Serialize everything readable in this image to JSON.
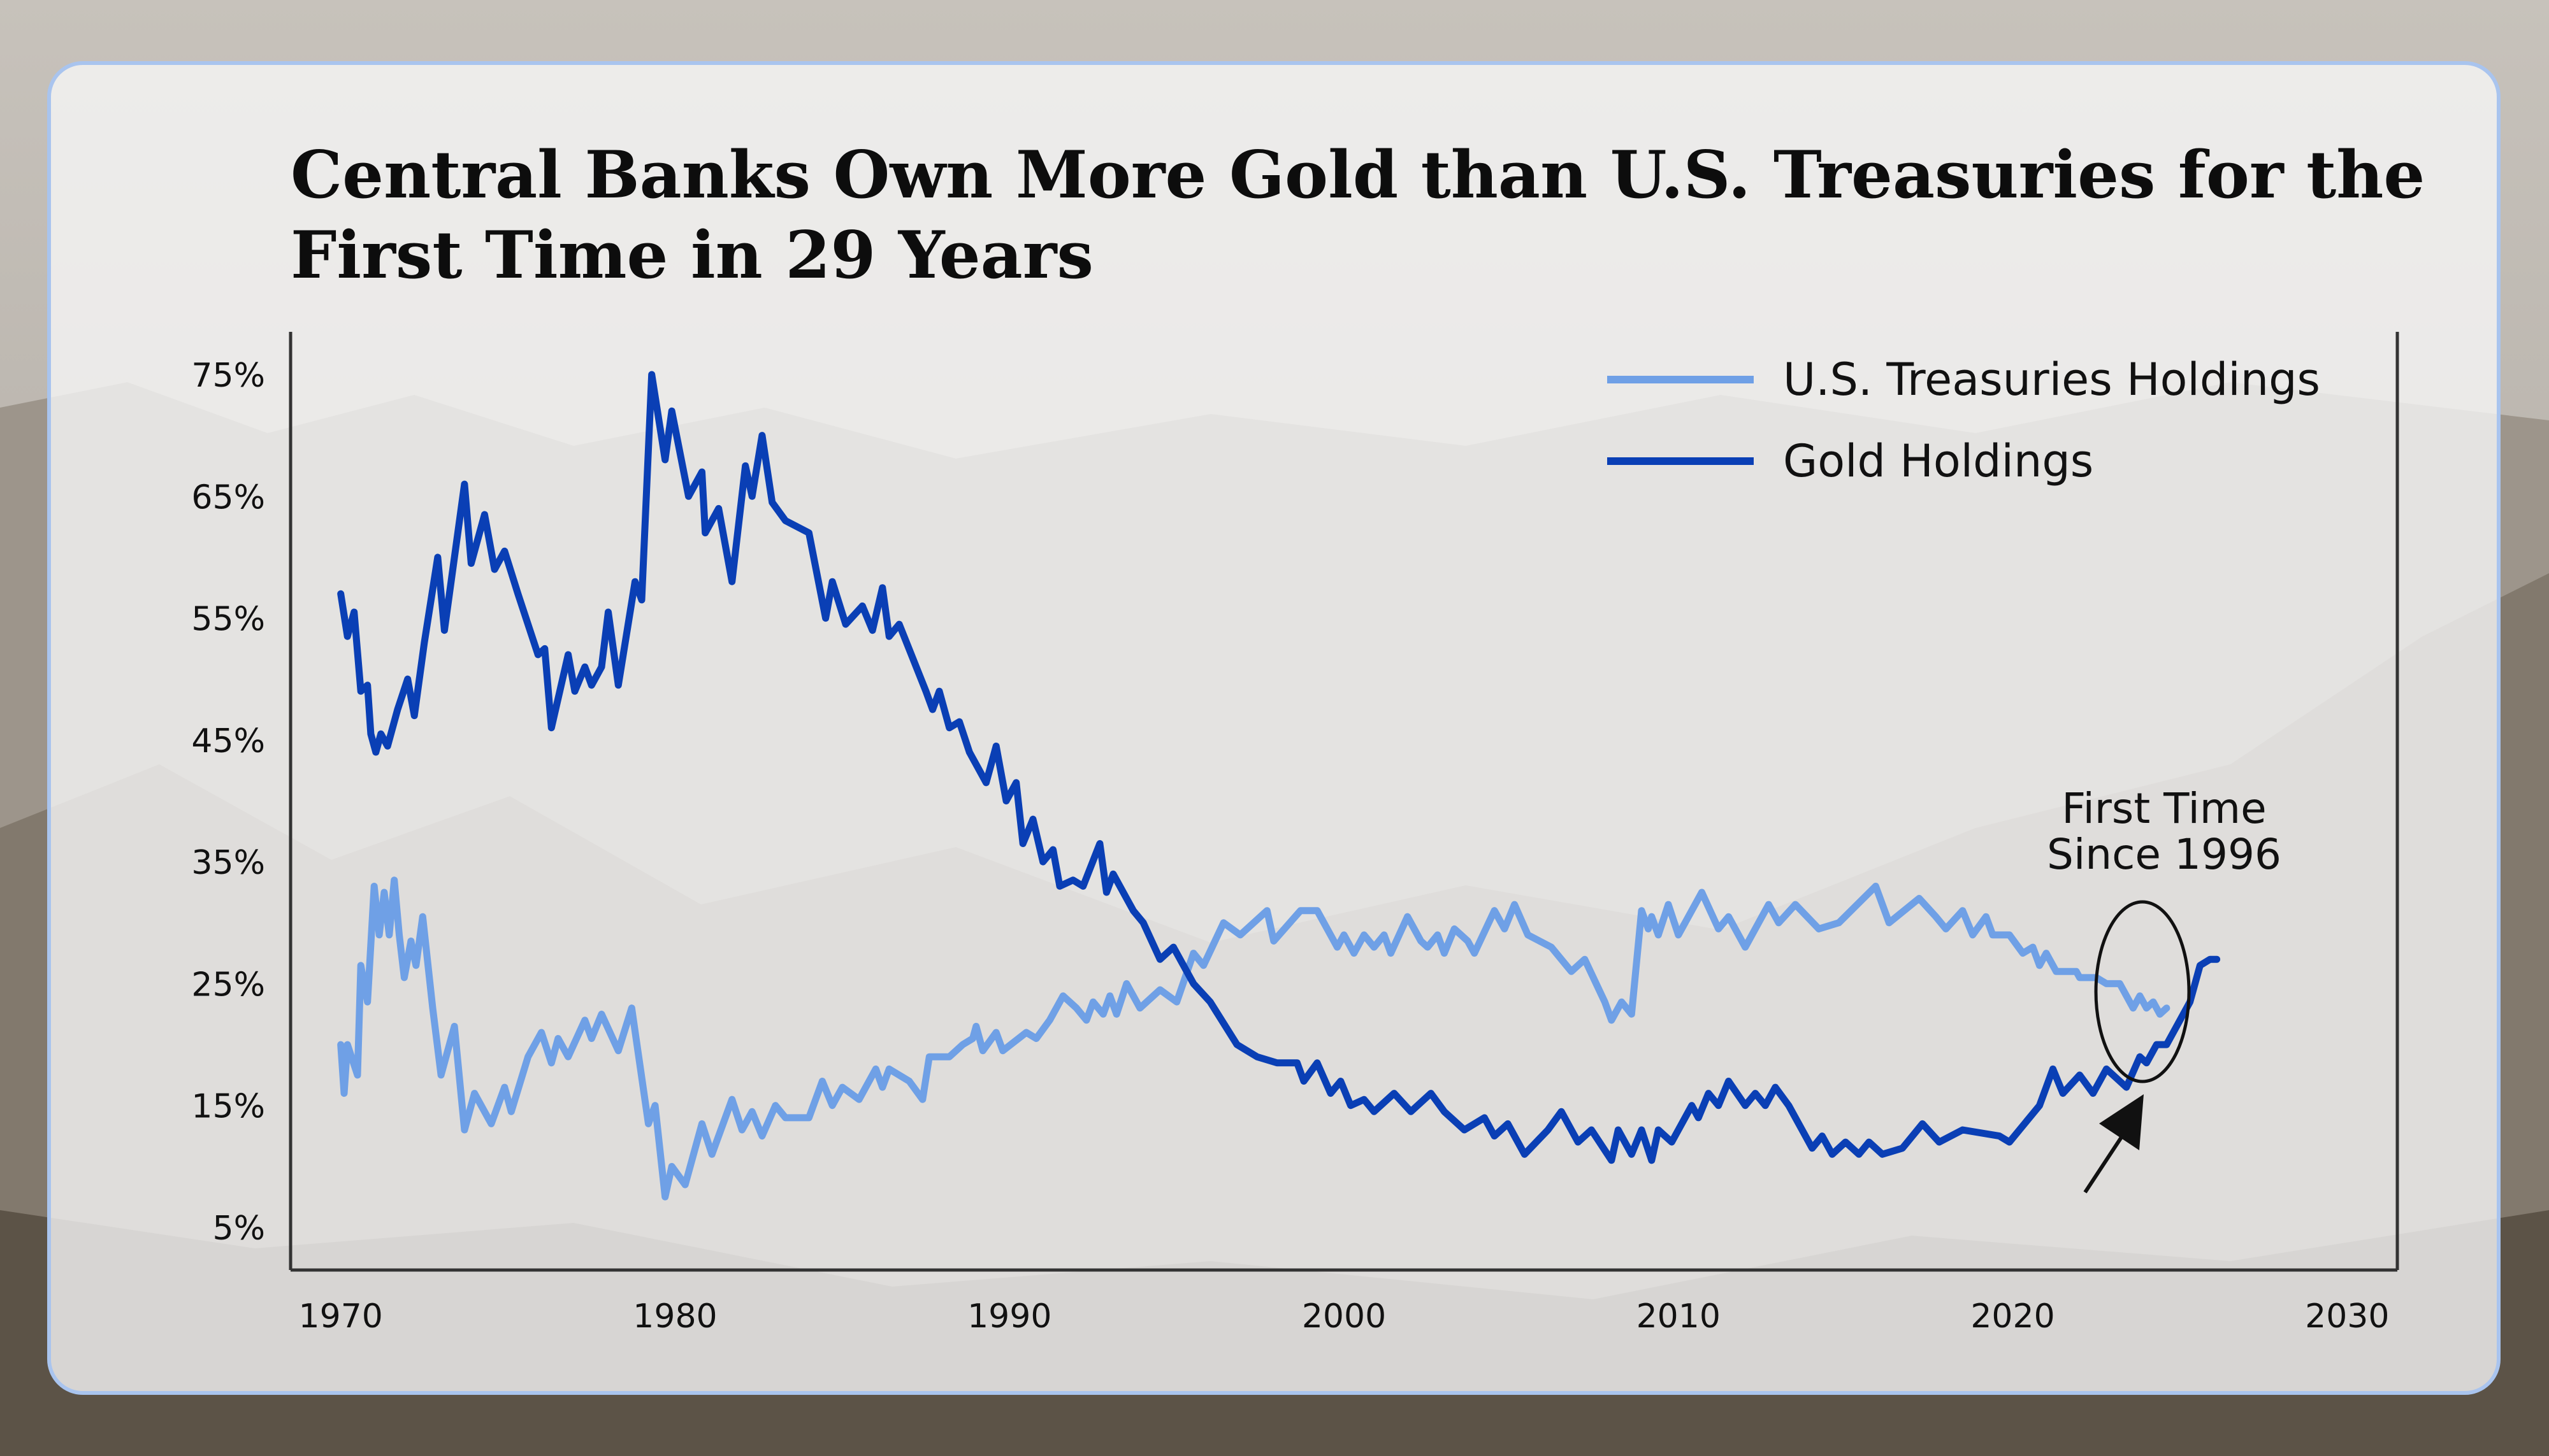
{
  "chart_data": {
    "type": "line",
    "title_lines": [
      "Central Banks Own More Gold than U.S. Treasuries for the",
      "First Time in 29 Years"
    ],
    "xlabel": "",
    "ylabel": "",
    "xlim": [
      1968.5,
      2031.5
    ],
    "ylim": [
      1.5,
      78.5
    ],
    "x_ticks": [
      "1970",
      "1980",
      "1990",
      "2000",
      "2010",
      "2020",
      "2030"
    ],
    "y_ticks": [
      "5%",
      "15%",
      "25%",
      "35%",
      "45%",
      "55%",
      "65%",
      "75%"
    ],
    "grid": false,
    "legend_position": "top-right",
    "annotation": "First Time Since 1996",
    "annotation_lines": [
      "First Time",
      "Since 1996"
    ],
    "series": [
      {
        "name": "U.S. Treasuries Holdings",
        "color": "#6fa0e6",
        "points": [
          [
            1970.0,
            20
          ],
          [
            1970.1,
            16
          ],
          [
            1970.2,
            20
          ],
          [
            1970.5,
            17.5
          ],
          [
            1970.6,
            26.5
          ],
          [
            1970.8,
            23.5
          ],
          [
            1971.0,
            33
          ],
          [
            1971.15,
            29
          ],
          [
            1971.3,
            32.5
          ],
          [
            1971.45,
            29
          ],
          [
            1971.6,
            33.5
          ],
          [
            1971.75,
            29
          ],
          [
            1971.9,
            25.5
          ],
          [
            1972.1,
            28.5
          ],
          [
            1972.25,
            26.5
          ],
          [
            1972.45,
            30.5
          ],
          [
            1972.75,
            23
          ],
          [
            1973.0,
            17.5
          ],
          [
            1973.4,
            21.5
          ],
          [
            1973.7,
            13
          ],
          [
            1974.0,
            16
          ],
          [
            1974.5,
            13.5
          ],
          [
            1974.9,
            16.5
          ],
          [
            1975.1,
            14.5
          ],
          [
            1975.6,
            19
          ],
          [
            1976.0,
            21
          ],
          [
            1976.3,
            18.5
          ],
          [
            1976.5,
            20.5
          ],
          [
            1976.8,
            19
          ],
          [
            1977.3,
            22
          ],
          [
            1977.5,
            20.5
          ],
          [
            1977.8,
            22.5
          ],
          [
            1978.3,
            19.5
          ],
          [
            1978.7,
            23
          ],
          [
            1979.2,
            13.5
          ],
          [
            1979.4,
            15
          ],
          [
            1979.7,
            7.5
          ],
          [
            1979.9,
            10
          ],
          [
            1980.3,
            8.5
          ],
          [
            1980.8,
            13.5
          ],
          [
            1981.1,
            11
          ],
          [
            1981.7,
            15.5
          ],
          [
            1982.0,
            13
          ],
          [
            1982.3,
            14.5
          ],
          [
            1982.6,
            12.5
          ],
          [
            1983.0,
            15
          ],
          [
            1983.3,
            14
          ],
          [
            1984.0,
            14
          ],
          [
            1984.4,
            17
          ],
          [
            1984.7,
            15
          ],
          [
            1985.0,
            16.5
          ],
          [
            1985.5,
            15.5
          ],
          [
            1986.0,
            18
          ],
          [
            1986.2,
            16.5
          ],
          [
            1986.4,
            18
          ],
          [
            1987.0,
            17
          ],
          [
            1987.4,
            15.5
          ],
          [
            1987.6,
            19
          ],
          [
            1988.2,
            19
          ],
          [
            1988.6,
            20
          ],
          [
            1988.9,
            20.5
          ],
          [
            1989.0,
            21.5
          ],
          [
            1989.2,
            19.5
          ],
          [
            1989.6,
            21
          ],
          [
            1989.8,
            19.5
          ],
          [
            1990.5,
            21
          ],
          [
            1990.8,
            20.5
          ],
          [
            1991.2,
            22
          ],
          [
            1991.6,
            24
          ],
          [
            1992.0,
            23
          ],
          [
            1992.3,
            22
          ],
          [
            1992.5,
            23.5
          ],
          [
            1992.8,
            22.5
          ],
          [
            1993.0,
            24
          ],
          [
            1993.2,
            22.5
          ],
          [
            1993.5,
            25
          ],
          [
            1993.9,
            23
          ],
          [
            1994.5,
            24.5
          ],
          [
            1995.0,
            23.5
          ],
          [
            1995.5,
            27.5
          ],
          [
            1995.8,
            26.5
          ],
          [
            1996.4,
            30
          ],
          [
            1996.9,
            29
          ],
          [
            1997.7,
            31
          ],
          [
            1997.9,
            28.5
          ],
          [
            1998.7,
            31
          ],
          [
            1999.2,
            31
          ],
          [
            1999.8,
            28
          ],
          [
            2000.0,
            29
          ],
          [
            2000.3,
            27.5
          ],
          [
            2000.6,
            29
          ],
          [
            2000.9,
            28
          ],
          [
            2001.2,
            29
          ],
          [
            2001.4,
            27.5
          ],
          [
            2001.9,
            30.5
          ],
          [
            2002.3,
            28.5
          ],
          [
            2002.5,
            28
          ],
          [
            2002.8,
            29
          ],
          [
            2003.0,
            27.5
          ],
          [
            2003.3,
            29.5
          ],
          [
            2003.7,
            28.5
          ],
          [
            2003.9,
            27.5
          ],
          [
            2004.5,
            31
          ],
          [
            2004.8,
            29.5
          ],
          [
            2005.1,
            31.5
          ],
          [
            2005.5,
            29
          ],
          [
            2006.2,
            28
          ],
          [
            2006.8,
            26
          ],
          [
            2007.2,
            27
          ],
          [
            2007.8,
            23.5
          ],
          [
            2008.0,
            22
          ],
          [
            2008.3,
            23.5
          ],
          [
            2008.6,
            22.5
          ],
          [
            2008.9,
            31
          ],
          [
            2009.1,
            29.5
          ],
          [
            2009.2,
            30.5
          ],
          [
            2009.4,
            29
          ],
          [
            2009.7,
            31.5
          ],
          [
            2010.0,
            29
          ],
          [
            2010.7,
            32.5
          ],
          [
            2011.2,
            29.5
          ],
          [
            2011.5,
            30.5
          ],
          [
            2012.0,
            28
          ],
          [
            2012.7,
            31.5
          ],
          [
            2013.0,
            30
          ],
          [
            2013.5,
            31.5
          ],
          [
            2014.2,
            29.5
          ],
          [
            2014.8,
            30
          ],
          [
            2015.9,
            33
          ],
          [
            2016.3,
            30
          ],
          [
            2017.2,
            32
          ],
          [
            2017.7,
            30.5
          ],
          [
            2018.0,
            29.5
          ],
          [
            2018.5,
            31
          ],
          [
            2018.8,
            29
          ],
          [
            2019.2,
            30.5
          ],
          [
            2019.4,
            29
          ],
          [
            2019.9,
            29
          ],
          [
            2020.3,
            27.5
          ],
          [
            2020.6,
            28
          ],
          [
            2020.8,
            26.5
          ],
          [
            2021.0,
            27.5
          ],
          [
            2021.3,
            26
          ],
          [
            2021.9,
            26
          ],
          [
            2022.0,
            25.5
          ],
          [
            2022.5,
            25.5
          ],
          [
            2022.8,
            25
          ],
          [
            2023.2,
            25
          ],
          [
            2023.6,
            23
          ],
          [
            2023.8,
            24
          ],
          [
            2024.0,
            23
          ],
          [
            2024.2,
            23.5
          ],
          [
            2024.4,
            22.5
          ],
          [
            2024.6,
            23
          ]
        ]
      },
      {
        "name": "Gold Holdings",
        "color": "#0a3fb5",
        "points": [
          [
            1970.0,
            57
          ],
          [
            1970.2,
            53.5
          ],
          [
            1970.4,
            55.5
          ],
          [
            1970.6,
            49
          ],
          [
            1970.8,
            49.5
          ],
          [
            1970.9,
            45.5
          ],
          [
            1971.05,
            44
          ],
          [
            1971.2,
            45.5
          ],
          [
            1971.4,
            44.5
          ],
          [
            1971.7,
            47.5
          ],
          [
            1972.0,
            50
          ],
          [
            1972.2,
            47
          ],
          [
            1972.5,
            53
          ],
          [
            1972.9,
            60
          ],
          [
            1973.1,
            54
          ],
          [
            1973.7,
            66
          ],
          [
            1973.9,
            59.5
          ],
          [
            1974.3,
            63.5
          ],
          [
            1974.6,
            59
          ],
          [
            1974.9,
            60.5
          ],
          [
            1975.3,
            57
          ],
          [
            1975.9,
            52
          ],
          [
            1976.1,
            52.5
          ],
          [
            1976.3,
            46
          ],
          [
            1976.8,
            52
          ],
          [
            1977.0,
            49
          ],
          [
            1977.3,
            51
          ],
          [
            1977.5,
            49.5
          ],
          [
            1977.8,
            51
          ],
          [
            1978.0,
            55.5
          ],
          [
            1978.3,
            49.5
          ],
          [
            1978.8,
            58
          ],
          [
            1979.0,
            56.5
          ],
          [
            1979.3,
            75
          ],
          [
            1979.7,
            68
          ],
          [
            1979.9,
            72
          ],
          [
            1980.4,
            65
          ],
          [
            1980.8,
            67
          ],
          [
            1980.9,
            62
          ],
          [
            1981.3,
            64
          ],
          [
            1981.7,
            58
          ],
          [
            1982.1,
            67.5
          ],
          [
            1982.3,
            65
          ],
          [
            1982.6,
            70
          ],
          [
            1982.9,
            64.5
          ],
          [
            1983.3,
            63
          ],
          [
            1984.0,
            62
          ],
          [
            1984.5,
            55
          ],
          [
            1984.7,
            58
          ],
          [
            1985.1,
            54.5
          ],
          [
            1985.6,
            56
          ],
          [
            1985.9,
            54
          ],
          [
            1986.2,
            57.5
          ],
          [
            1986.4,
            53.5
          ],
          [
            1986.7,
            54.5
          ],
          [
            1987.5,
            49
          ],
          [
            1987.7,
            47.5
          ],
          [
            1987.9,
            49
          ],
          [
            1988.2,
            46
          ],
          [
            1988.5,
            46.5
          ],
          [
            1988.8,
            44
          ],
          [
            1989.3,
            41.5
          ],
          [
            1989.6,
            44.5
          ],
          [
            1989.9,
            40
          ],
          [
            1990.2,
            41.5
          ],
          [
            1990.4,
            36.5
          ],
          [
            1990.7,
            38.5
          ],
          [
            1991.0,
            35
          ],
          [
            1991.3,
            36
          ],
          [
            1991.5,
            33
          ],
          [
            1991.9,
            33.5
          ],
          [
            1992.2,
            33
          ],
          [
            1992.7,
            36.5
          ],
          [
            1992.9,
            32.5
          ],
          [
            1993.1,
            34
          ],
          [
            1993.7,
            31
          ],
          [
            1994.0,
            30
          ],
          [
            1994.5,
            27
          ],
          [
            1994.9,
            28
          ],
          [
            1995.5,
            25
          ],
          [
            1996.0,
            23.5
          ],
          [
            1996.8,
            20
          ],
          [
            1997.4,
            19
          ],
          [
            1998.0,
            18.5
          ],
          [
            1998.6,
            18.5
          ],
          [
            1998.8,
            17
          ],
          [
            1999.2,
            18.5
          ],
          [
            1999.6,
            16
          ],
          [
            1999.9,
            17
          ],
          [
            2000.2,
            15
          ],
          [
            2000.6,
            15.5
          ],
          [
            2000.9,
            14.5
          ],
          [
            2001.5,
            16
          ],
          [
            2002.0,
            14.5
          ],
          [
            2002.6,
            16
          ],
          [
            2003.0,
            14.5
          ],
          [
            2003.6,
            13
          ],
          [
            2004.2,
            14
          ],
          [
            2004.5,
            12.5
          ],
          [
            2004.9,
            13.5
          ],
          [
            2005.4,
            11
          ],
          [
            2006.1,
            13
          ],
          [
            2006.5,
            14.5
          ],
          [
            2007.0,
            12
          ],
          [
            2007.4,
            13
          ],
          [
            2008.0,
            10.5
          ],
          [
            2008.2,
            13
          ],
          [
            2008.6,
            11
          ],
          [
            2008.9,
            13
          ],
          [
            2009.2,
            10.5
          ],
          [
            2009.4,
            13
          ],
          [
            2009.8,
            12
          ],
          [
            2010.4,
            15
          ],
          [
            2010.6,
            14
          ],
          [
            2010.9,
            16
          ],
          [
            2011.2,
            15
          ],
          [
            2011.5,
            17
          ],
          [
            2012.0,
            15
          ],
          [
            2012.3,
            16
          ],
          [
            2012.6,
            15
          ],
          [
            2012.9,
            16.5
          ],
          [
            2013.3,
            15
          ],
          [
            2014.0,
            11.5
          ],
          [
            2014.3,
            12.5
          ],
          [
            2014.6,
            11
          ],
          [
            2015.0,
            12
          ],
          [
            2015.4,
            11
          ],
          [
            2015.7,
            12
          ],
          [
            2016.1,
            11
          ],
          [
            2016.7,
            11.5
          ],
          [
            2017.3,
            13.5
          ],
          [
            2017.8,
            12
          ],
          [
            2018.5,
            13
          ],
          [
            2019.6,
            12.5
          ],
          [
            2019.9,
            12
          ],
          [
            2020.8,
            15
          ],
          [
            2021.2,
            18
          ],
          [
            2021.5,
            16
          ],
          [
            2022.0,
            17.5
          ],
          [
            2022.4,
            16
          ],
          [
            2022.8,
            18
          ],
          [
            2023.2,
            17
          ],
          [
            2023.4,
            16.5
          ],
          [
            2023.8,
            19
          ],
          [
            2024.0,
            18.5
          ],
          [
            2024.3,
            20
          ],
          [
            2024.6,
            20
          ],
          [
            2025.3,
            23.5
          ],
          [
            2025.6,
            26.5
          ],
          [
            2025.9,
            27
          ],
          [
            2026.1,
            27
          ]
        ]
      }
    ]
  }
}
